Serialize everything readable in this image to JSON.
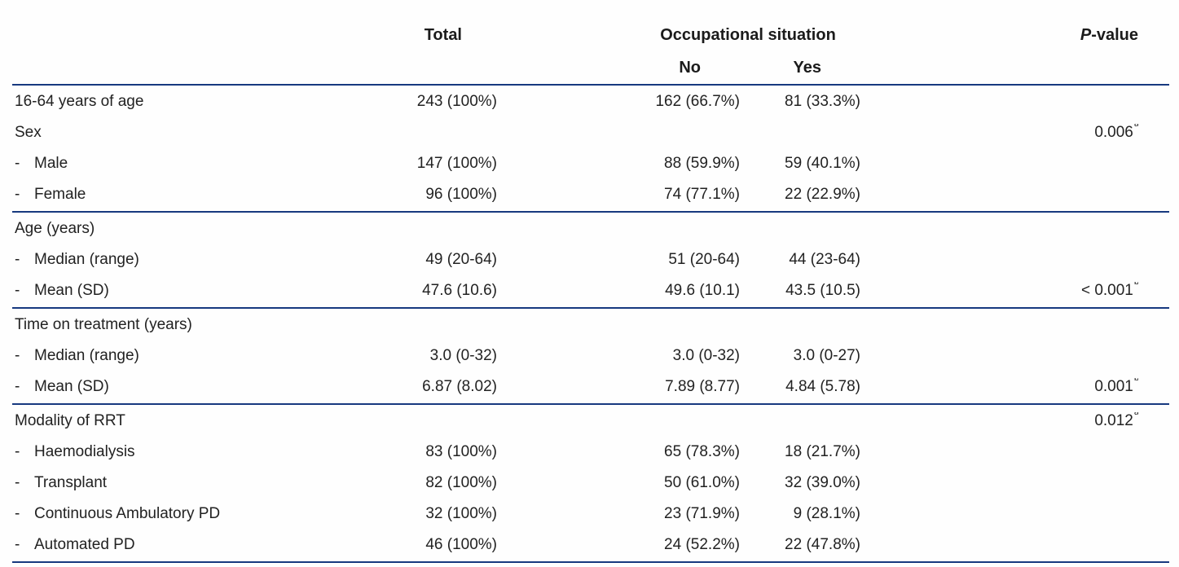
{
  "table": {
    "rule_color": "#17397f",
    "header": {
      "total": "Total",
      "occupational": "Occupational situation",
      "no": "No",
      "yes": "Yes",
      "p_italic": "P",
      "p_rest": "-value"
    },
    "groups": [
      {
        "rows": [
          {
            "label": "16-64 years of age",
            "total": "243 (100%)",
            "no": "162 (66.7%)",
            "yes": "81 (33.3%)"
          },
          {
            "label": "Sex",
            "p": "0.006",
            "p_sup": "a"
          },
          {
            "dash": "-",
            "label": "Male",
            "total": "147 (100%)",
            "no": "88 (59.9%)",
            "yes": "59 (40.1%)"
          },
          {
            "dash": "-",
            "label": "Female",
            "total": "96 (100%)",
            "no": "74 (77.1%)",
            "yes": "22 (22.9%)"
          }
        ]
      },
      {
        "rows": [
          {
            "label": "Age (years)"
          },
          {
            "dash": "-",
            "label": "Median (range)",
            "total": "49 (20-64)",
            "no": "51 (20-64)",
            "yes": "44 (23-64)"
          },
          {
            "dash": "-",
            "label": "Mean (SD)",
            "total": "47.6 (10.6)",
            "no": "49.6 (10.1)",
            "yes": "43.5 (10.5)",
            "p": "< 0.001",
            "p_sup": "b"
          }
        ]
      },
      {
        "rows": [
          {
            "label": "Time on treatment (years)"
          },
          {
            "dash": "-",
            "label": "Median (range)",
            "total": "3.0 (0-32)",
            "no": "3.0 (0-32)",
            "yes": "3.0 (0-27)"
          },
          {
            "dash": "-",
            "label": "Mean (SD)",
            "total": "6.87 (8.02)",
            "no": "7.89 (8.77)",
            "yes": "4.84 (5.78)",
            "p": "0.001",
            "p_sup": "b"
          }
        ]
      },
      {
        "rows": [
          {
            "label": "Modality of RRT",
            "p": "0.012",
            "p_sup": "a"
          },
          {
            "dash": "-",
            "label": "Haemodialysis",
            "total": "83 (100%)",
            "no": "65 (78.3%)",
            "yes": "18 (21.7%)"
          },
          {
            "dash": "-",
            "label": "Transplant",
            "total": "82 (100%)",
            "no": "50 (61.0%)",
            "yes": "32 (39.0%)"
          },
          {
            "dash": "-",
            "label": "Continuous Ambulatory PD",
            "total": "32 (100%)",
            "no": "23 (71.9%)",
            "yes": "9 (28.1%)"
          },
          {
            "dash": "-",
            "label": "Automated PD",
            "total": "46 (100%)",
            "no": "24 (52.2%)",
            "yes": "22 (47.8%)"
          }
        ]
      }
    ]
  }
}
